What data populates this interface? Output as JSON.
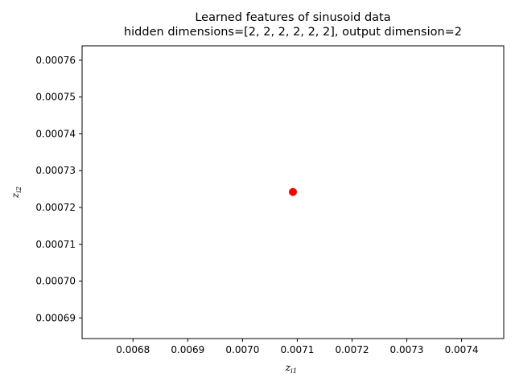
{
  "chart_data": {
    "type": "scatter",
    "title": "Learned features of sinusoid data",
    "subtitle": "hidden dimensions=[2, 2, 2, 2, 2, 2], output dimension=2",
    "xlabel": {
      "main": "z",
      "sub": "i1"
    },
    "ylabel": {
      "main": "z",
      "sub": "i2"
    },
    "xlim": [
      0.006707,
      0.007477
    ],
    "ylim": [
      0.0006844,
      0.0007639
    ],
    "xticks": [
      "0.0068",
      "0.0069",
      "0.0070",
      "0.0071",
      "0.0072",
      "0.0073",
      "0.0074"
    ],
    "xtick_values": [
      0.0068,
      0.0069,
      0.007,
      0.0071,
      0.0072,
      0.0073,
      0.0074
    ],
    "yticks": [
      "0.00069",
      "0.00070",
      "0.00071",
      "0.00072",
      "0.00073",
      "0.00074",
      "0.00075",
      "0.00076"
    ],
    "ytick_values": [
      0.00069,
      0.0007,
      0.00071,
      0.00072,
      0.00073,
      0.00074,
      0.00075,
      0.00076
    ],
    "points": [
      {
        "x": 0.007092,
        "y": 0.0007242
      }
    ],
    "marker_color": "#ff0000",
    "grid": false
  }
}
